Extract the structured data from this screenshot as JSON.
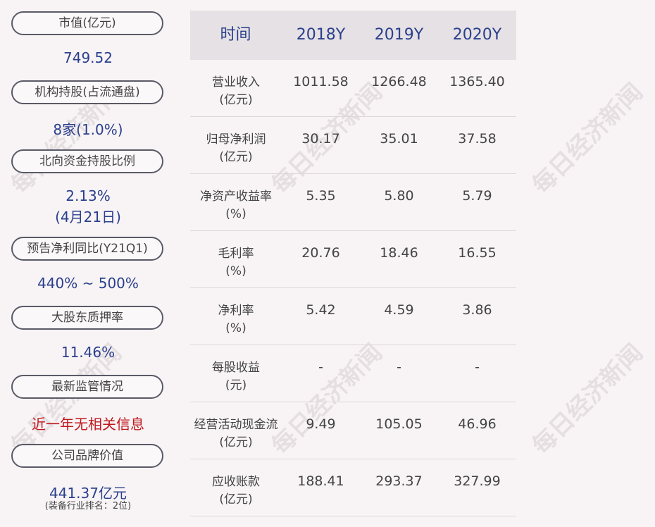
{
  "left_panel": {
    "items": [
      {
        "label": "市值(亿元)",
        "value": "749.52"
      },
      {
        "label": "机构持股(占流通盘)",
        "value": "8家(1.0%)"
      },
      {
        "label": "北向资金持股比例",
        "value": "2.13%",
        "value2": "(4月21日)"
      },
      {
        "label": "预告净利同比(Y21Q1)",
        "value": "440% ~ 500%"
      },
      {
        "label": "大股东质押率",
        "value": "11.46%"
      },
      {
        "label": "最新监管情况",
        "value": "近一年无相关信息"
      },
      {
        "label": "公司品牌价值",
        "value": "441.37亿元",
        "note": "(装备行业排名：2位)"
      }
    ]
  },
  "table": {
    "headers": [
      "时间",
      "2018Y",
      "2019Y",
      "2020Y"
    ],
    "rows": [
      {
        "label": "营业收入",
        "unit": "(亿元)",
        "values": [
          "1011.58",
          "1266.48",
          "1365.40"
        ]
      },
      {
        "label": "归母净利润",
        "unit": "(亿元)",
        "values": [
          "30.17",
          "35.01",
          "37.58"
        ]
      },
      {
        "label": "净资产收益率",
        "unit": "(%)",
        "values": [
          "5.35",
          "5.80",
          "5.79"
        ]
      },
      {
        "label": "毛利率",
        "unit": "(%)",
        "values": [
          "20.76",
          "18.46",
          "16.55"
        ]
      },
      {
        "label": "净利率",
        "unit": "(%)",
        "values": [
          "5.42",
          "4.59",
          "3.86"
        ]
      },
      {
        "label": "每股收益",
        "unit": "(元)",
        "values": [
          "-",
          "-",
          "-"
        ]
      },
      {
        "label": "经营活动现金流",
        "unit": "(亿元)",
        "values": [
          "9.49",
          "105.05",
          "46.96"
        ]
      },
      {
        "label": "应收账款",
        "unit": "(亿元)",
        "values": [
          "188.41",
          "293.37",
          "327.99"
        ]
      }
    ]
  },
  "watermark": "每日经济新闻"
}
